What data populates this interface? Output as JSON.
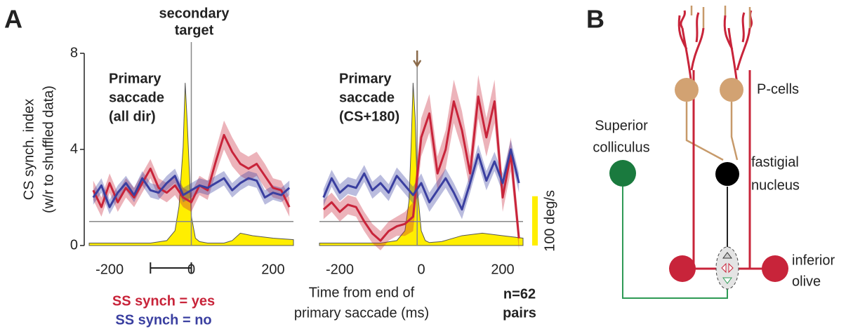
{
  "panel_labels": [
    "A",
    "B"
  ],
  "chart_data": [
    {
      "type": "line",
      "xlim": [
        -250,
        250
      ],
      "ylim": [
        0,
        8
      ],
      "yticks": [
        0,
        4,
        8
      ],
      "xticks": [
        -200,
        0,
        200
      ],
      "y2lim": [
        0,
        390
      ],
      "y_label": [
        "CS synch. index",
        "(w/r to shuffled data)"
      ],
      "annotation": [
        "Primary",
        "saccade",
        "(all dir)"
      ],
      "event_label": [
        "secondary",
        "target"
      ],
      "event_line": 0,
      "event_arrow": false,
      "reference_line": 1,
      "bracket": [
        -100,
        0
      ],
      "x": [
        -240,
        -220,
        -200,
        -180,
        -160,
        -140,
        -120,
        -100,
        -80,
        -60,
        -40,
        -20,
        0,
        20,
        40,
        60,
        80,
        100,
        120,
        140,
        160,
        180,
        200,
        220,
        240
      ],
      "velocity": {
        "color": "#ffee00",
        "x": [
          -250,
          -100,
          -60,
          -40,
          -30,
          -20,
          -15,
          -10,
          0,
          10,
          20,
          40,
          80,
          100,
          120,
          150,
          200,
          250
        ],
        "values": [
          5,
          5,
          10,
          30,
          80,
          200,
          330,
          250,
          60,
          15,
          8,
          5,
          5,
          10,
          25,
          20,
          15,
          12
        ]
      },
      "series": [
        {
          "name": "SS synch = yes",
          "color": "#c8243a",
          "values": [
            2.3,
            1.6,
            2.6,
            1.8,
            2.4,
            2.0,
            2.6,
            3.2,
            2.4,
            2.2,
            2.5,
            2.0,
            1.8,
            2.5,
            2.3,
            3.5,
            4.6,
            3.9,
            3.4,
            3.2,
            3.4,
            2.9,
            2.4,
            2.3,
            1.6
          ],
          "errors": [
            0.4,
            0.4,
            0.4,
            0.4,
            0.4,
            0.4,
            0.4,
            0.4,
            0.4,
            0.4,
            0.4,
            0.4,
            0.4,
            0.4,
            0.4,
            0.5,
            0.6,
            0.6,
            0.5,
            0.5,
            0.5,
            0.5,
            0.4,
            0.4,
            0.4
          ]
        },
        {
          "name": "SS synch = no",
          "color": "#3a3fa0",
          "values": [
            2.0,
            2.5,
            1.6,
            2.2,
            2.6,
            2.1,
            2.8,
            2.3,
            2.2,
            2.6,
            2.9,
            2.1,
            2.3,
            2.5,
            2.4,
            2.6,
            2.8,
            2.3,
            2.6,
            2.8,
            2.7,
            2.0,
            2.2,
            2.1,
            2.4
          ],
          "errors": [
            0.3,
            0.3,
            0.3,
            0.3,
            0.3,
            0.3,
            0.3,
            0.3,
            0.3,
            0.3,
            0.3,
            0.3,
            0.3,
            0.3,
            0.3,
            0.3,
            0.3,
            0.3,
            0.3,
            0.3,
            0.3,
            0.3,
            0.3,
            0.3,
            0.3
          ]
        }
      ]
    },
    {
      "type": "line",
      "xlim": [
        -250,
        250
      ],
      "ylim": [
        0,
        8
      ],
      "xticks": [
        -200,
        0,
        200
      ],
      "y2lim": [
        0,
        390
      ],
      "x_label": [
        "Time from end of",
        "primary saccade (ms)"
      ],
      "annotation": [
        "Primary",
        "saccade",
        "(CS+180)"
      ],
      "note": [
        "n=62",
        "pairs"
      ],
      "event_line": -10,
      "event_arrow": true,
      "reference_line": 1,
      "scale_bar": {
        "value": 100,
        "label": "100 deg/s"
      },
      "x": [
        -240,
        -220,
        -200,
        -180,
        -160,
        -140,
        -120,
        -100,
        -80,
        -60,
        -40,
        -20,
        0,
        20,
        40,
        60,
        80,
        100,
        120,
        140,
        160,
        180,
        200,
        220,
        240
      ],
      "velocity": {
        "color": "#ffee00",
        "x": [
          -250,
          -100,
          -60,
          -40,
          -30,
          -25,
          -20,
          -15,
          -10,
          0,
          10,
          20,
          50,
          100,
          150,
          200,
          250
        ],
        "values": [
          5,
          5,
          10,
          30,
          90,
          200,
          330,
          260,
          120,
          30,
          10,
          6,
          8,
          20,
          25,
          20,
          15
        ]
      },
      "series": [
        {
          "color": "#c8243a",
          "values": [
            1.5,
            1.8,
            1.4,
            1.7,
            1.6,
            1.0,
            0.5,
            0.2,
            0.6,
            0.8,
            0.9,
            1.2,
            4.5,
            5.5,
            3.0,
            4.0,
            6.0,
            4.8,
            3.0,
            6.2,
            4.5,
            6.0,
            2.0,
            3.8,
            0.3
          ],
          "errors": [
            0.4,
            0.4,
            0.4,
            0.4,
            0.4,
            0.4,
            0.4,
            0.4,
            0.4,
            0.4,
            0.5,
            0.6,
            0.8,
            0.8,
            0.7,
            0.8,
            0.9,
            0.8,
            0.7,
            0.9,
            0.8,
            0.9,
            0.6,
            0.7,
            0.5
          ]
        },
        {
          "color": "#3a3fa0",
          "values": [
            2.0,
            2.8,
            2.2,
            2.5,
            2.4,
            3.0,
            2.3,
            2.6,
            2.2,
            2.9,
            2.5,
            2.1,
            2.6,
            1.8,
            2.3,
            2.8,
            2.2,
            1.5,
            2.6,
            3.8,
            2.7,
            3.5,
            2.6,
            4.0,
            2.6
          ],
          "errors": [
            0.35,
            0.35,
            0.35,
            0.35,
            0.35,
            0.35,
            0.35,
            0.35,
            0.35,
            0.35,
            0.35,
            0.35,
            0.4,
            0.4,
            0.4,
            0.4,
            0.4,
            0.4,
            0.4,
            0.4,
            0.4,
            0.4,
            0.4,
            0.4,
            0.4
          ]
        }
      ]
    }
  ],
  "diagram": {
    "p_cells": "P-cells",
    "superior_colliculus": [
      "Superior",
      "colliculus"
    ],
    "fastigial_nucleus": [
      "fastigial",
      "nucleus"
    ],
    "inferior_olive": [
      "inferior",
      "olive"
    ]
  }
}
